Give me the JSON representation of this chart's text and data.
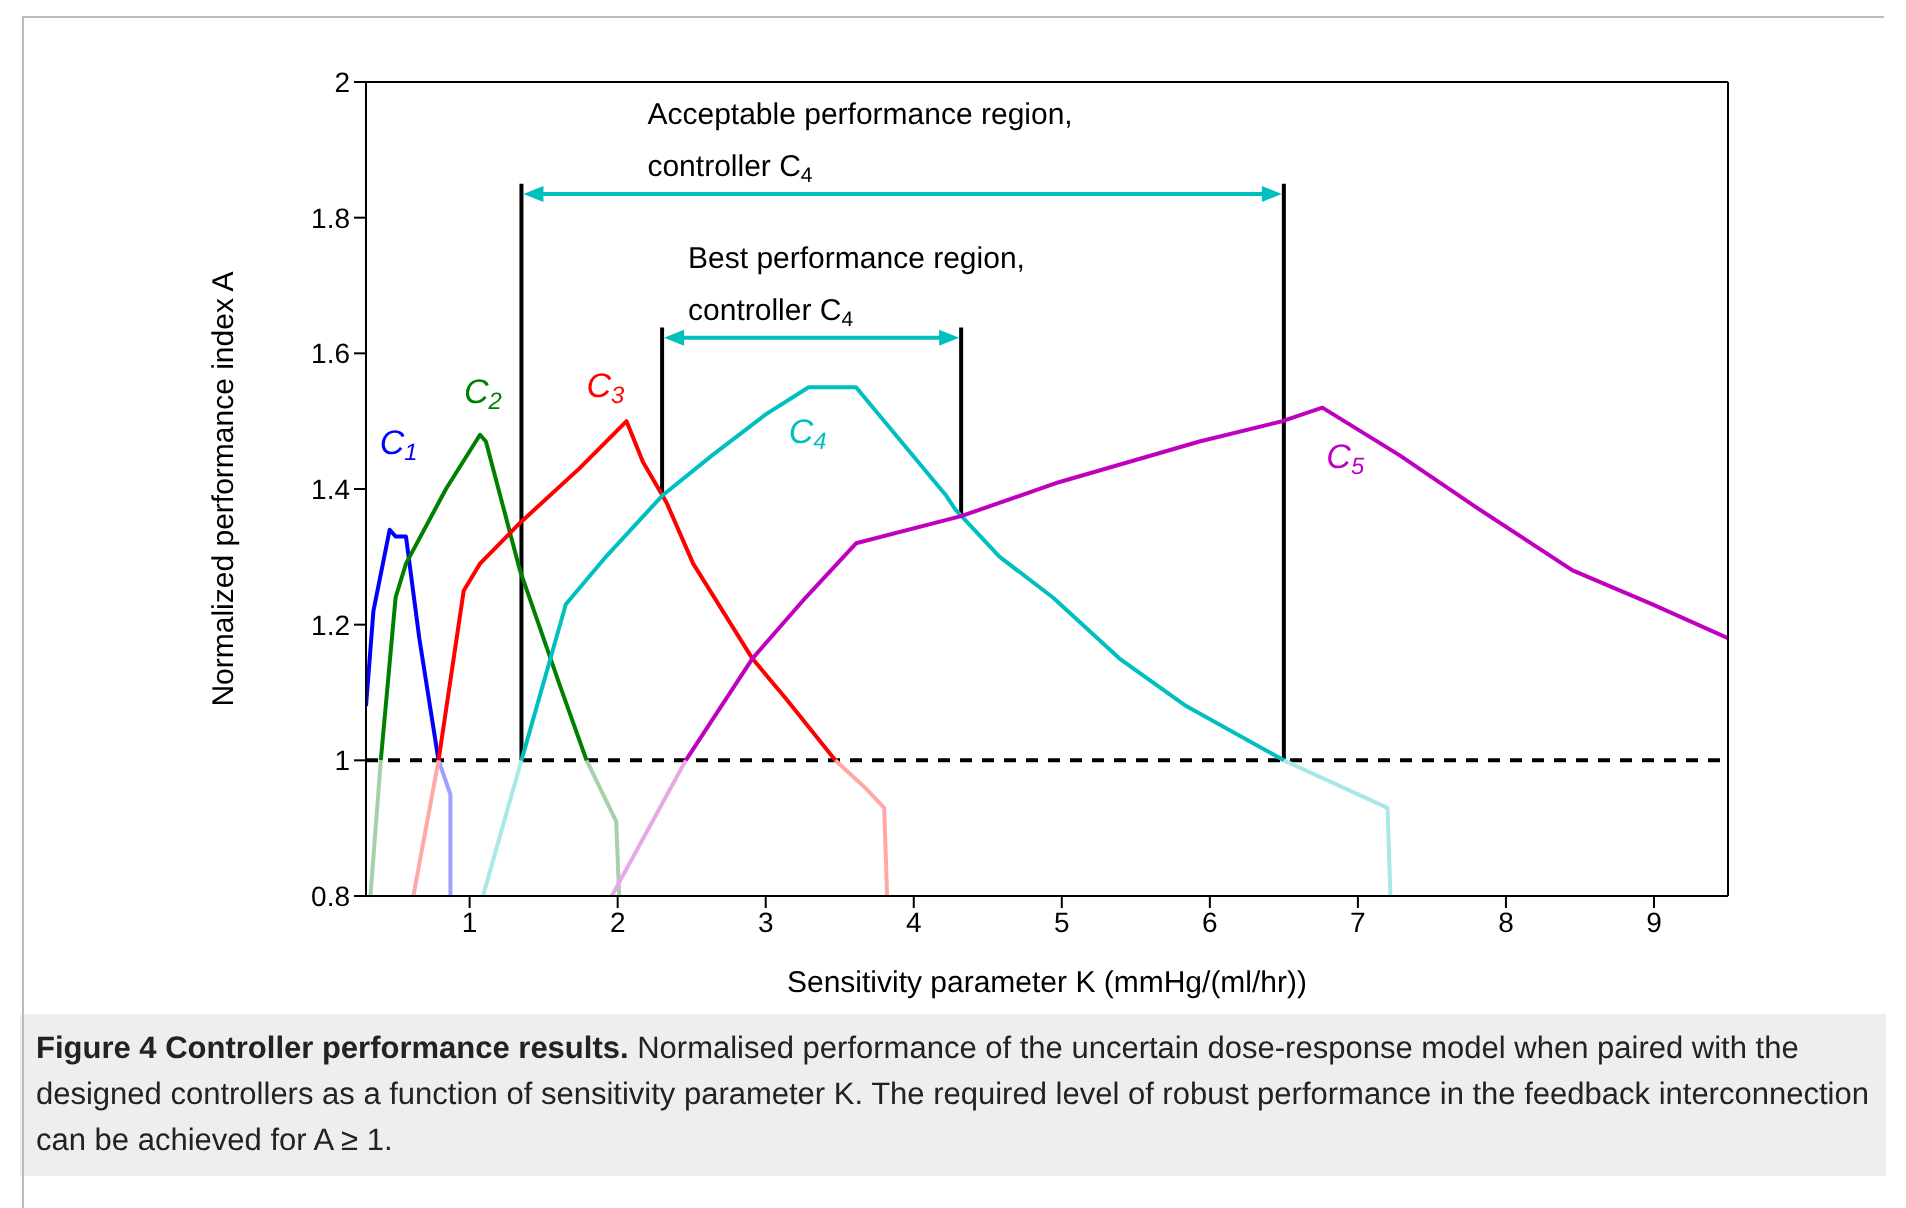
{
  "chart_data": {
    "type": "line",
    "title": "Figure 4  Controller performance results.",
    "xlabel": "Sensitivity parameter K (mmHg/(ml/hr))",
    "ylabel": "Normalized performance index A",
    "xlim": [
      0.3,
      9.5
    ],
    "xticks": [
      1,
      2,
      3,
      4,
      5,
      6,
      7,
      8,
      9
    ],
    "ylim": [
      0.8,
      2
    ],
    "yticks": [
      0.8,
      1,
      1.2,
      1.4,
      1.6,
      1.8,
      2
    ],
    "marker": "none",
    "series": [
      {
        "name": "C$_{1}$",
        "color": "#0000ff",
        "x": [
          0.3,
          0.35,
          0.46,
          0.5,
          0.57,
          0.66,
          0.79
        ],
        "values": [
          1.08,
          1.22,
          1.34,
          1.33,
          1.33,
          1.18,
          1.0
        ]
      },
      {
        "color": "#a0a0ff",
        "x": [
          0.79,
          0.87,
          0.87
        ],
        "values": [
          1.0,
          0.95,
          0.8
        ]
      },
      {
        "name": "C$_{2}$",
        "color": "#008000",
        "x": [
          0.4,
          0.5,
          0.57,
          0.84,
          1.07,
          1.11,
          1.34,
          1.61,
          1.79
        ],
        "values": [
          1.0,
          1.24,
          1.29,
          1.4,
          1.48,
          1.47,
          1.28,
          1.11,
          1.0
        ]
      },
      {
        "color": "#a8d0a8",
        "x": [
          0.33,
          0.4
        ],
        "values": [
          0.8,
          1.0
        ]
      },
      {
        "color": "#a8d0a8",
        "x": [
          1.79,
          1.99,
          2.01
        ],
        "values": [
          1.0,
          0.91,
          0.8
        ]
      },
      {
        "name": "C$_{3}$",
        "color": "#ff0000",
        "x": [
          0.79,
          0.96,
          1.07,
          1.34,
          1.74,
          2.06,
          2.17,
          2.33,
          2.51,
          2.91,
          3.14,
          3.47
        ],
        "values": [
          1.0,
          1.25,
          1.29,
          1.35,
          1.43,
          1.5,
          1.44,
          1.38,
          1.29,
          1.15,
          1.09,
          1.0
        ]
      },
      {
        "color": "#ffa8a8",
        "x": [
          0.62,
          0.79
        ],
        "values": [
          0.8,
          1.0
        ]
      },
      {
        "color": "#ffa8a8",
        "x": [
          3.47,
          3.67,
          3.8,
          3.82
        ],
        "values": [
          1.0,
          0.96,
          0.93,
          0.8
        ]
      },
      {
        "name": "C$_{4}$",
        "color": "#00bfbf",
        "x": [
          1.35,
          1.65,
          1.92,
          2.3,
          2.64,
          3.0,
          3.29,
          3.61,
          4.22,
          4.28,
          4.58,
          4.94,
          5.39,
          5.84,
          6.5
        ],
        "values": [
          1.0,
          1.23,
          1.3,
          1.39,
          1.45,
          1.51,
          1.55,
          1.55,
          1.39,
          1.37,
          1.3,
          1.24,
          1.15,
          1.08,
          1.0
        ]
      },
      {
        "color": "#a8e8e8",
        "x": [
          1.09,
          1.35
        ],
        "values": [
          0.8,
          1.0
        ]
      },
      {
        "color": "#a8e8e8",
        "x": [
          6.5,
          7.2,
          7.22
        ],
        "values": [
          1.0,
          0.93,
          0.8
        ]
      },
      {
        "name": "C$_{5}$",
        "color": "#bf00bf",
        "x": [
          2.46,
          2.91,
          3.27,
          3.61,
          4.32,
          4.98,
          5.93,
          6.49,
          6.76,
          7.28,
          7.82,
          8.45,
          8.99,
          9.5
        ],
        "values": [
          1.0,
          1.15,
          1.24,
          1.32,
          1.36,
          1.41,
          1.47,
          1.5,
          1.52,
          1.45,
          1.37,
          1.28,
          1.23,
          1.18
        ]
      },
      {
        "color": "#e8a8e8",
        "x": [
          1.96,
          2.46
        ],
        "values": [
          0.8,
          1.0
        ]
      }
    ],
    "ref_lines": [
      {
        "axis": "y",
        "value": 1,
        "color": "#000000",
        "line_style": "dashed"
      },
      {
        "axis": "x",
        "value": 1.35,
        "color": "#000000"
      },
      {
        "axis": "x",
        "value": 6.5,
        "color": "#000000"
      },
      {
        "axis": "x",
        "value": 2.3,
        "color": "#000000"
      },
      {
        "axis": "x",
        "value": 4.32,
        "color": "#000000"
      }
    ],
    "annotations": [
      "Acceptable performance region,\ncontroller C$_{4}$",
      "Best performance region,\ncontroller C$_{4}$",
      "Normalised performance of the uncertain dose-response model when paired with the designed controllers as a function of sensitivity parameter K. The required level of robust performance in the feedback interconnection can be achieved for A ≥ 1."
    ]
  }
}
